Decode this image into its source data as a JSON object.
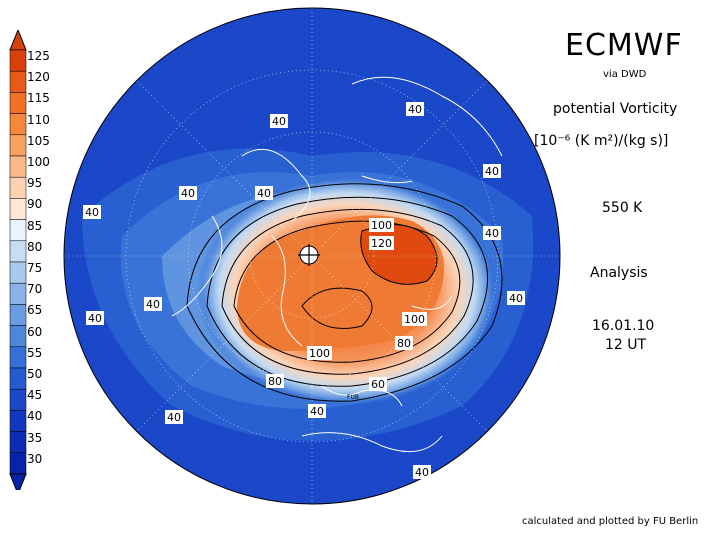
{
  "header": {
    "title": "ECMWF",
    "source": "via DWD",
    "field": "potential Vorticity",
    "units": "[10⁻⁶ (K m²)/(kg s)]",
    "level": "550 K",
    "type": "Analysis",
    "date": "16.01.10",
    "time": "12 UT"
  },
  "footer": "calculated and plotted by FU Berlin",
  "colorbar": {
    "labels": [
      "125",
      "120",
      "115",
      "110",
      "105",
      "100",
      "95",
      "90",
      "85",
      "80",
      "75",
      "70",
      "65",
      "60",
      "55",
      "50",
      "45",
      "40",
      "35",
      "30"
    ],
    "colors": [
      "#d8400c",
      "#e85a18",
      "#f07028",
      "#f6883c",
      "#f8a060",
      "#fab88a",
      "#fcd2b4",
      "#fee8d8",
      "#eaf2fb",
      "#c8dcf2",
      "#a8c8ee",
      "#88b2e8",
      "#6a9ce2",
      "#4e86dc",
      "#3670d6",
      "#245cd0",
      "#1a48c8",
      "#1238c0",
      "#0c2cb4",
      "#0822a8"
    ]
  },
  "map": {
    "contour_labels": [
      {
        "text": "40"
      },
      {
        "text": "40"
      },
      {
        "text": "40"
      },
      {
        "text": "40"
      },
      {
        "text": "40"
      },
      {
        "text": "40"
      },
      {
        "text": "40"
      },
      {
        "text": "40"
      },
      {
        "text": "40"
      },
      {
        "text": "40"
      },
      {
        "text": "40"
      },
      {
        "text": "40"
      },
      {
        "text": "40"
      },
      {
        "text": "100"
      },
      {
        "text": "120"
      },
      {
        "text": "100"
      },
      {
        "text": "100"
      },
      {
        "text": "80"
      },
      {
        "text": "80"
      },
      {
        "text": "60"
      }
    ],
    "marker": "FUB",
    "colors": {
      "ocean": "#1a48c8",
      "pole_marker": "#ffffff"
    }
  }
}
